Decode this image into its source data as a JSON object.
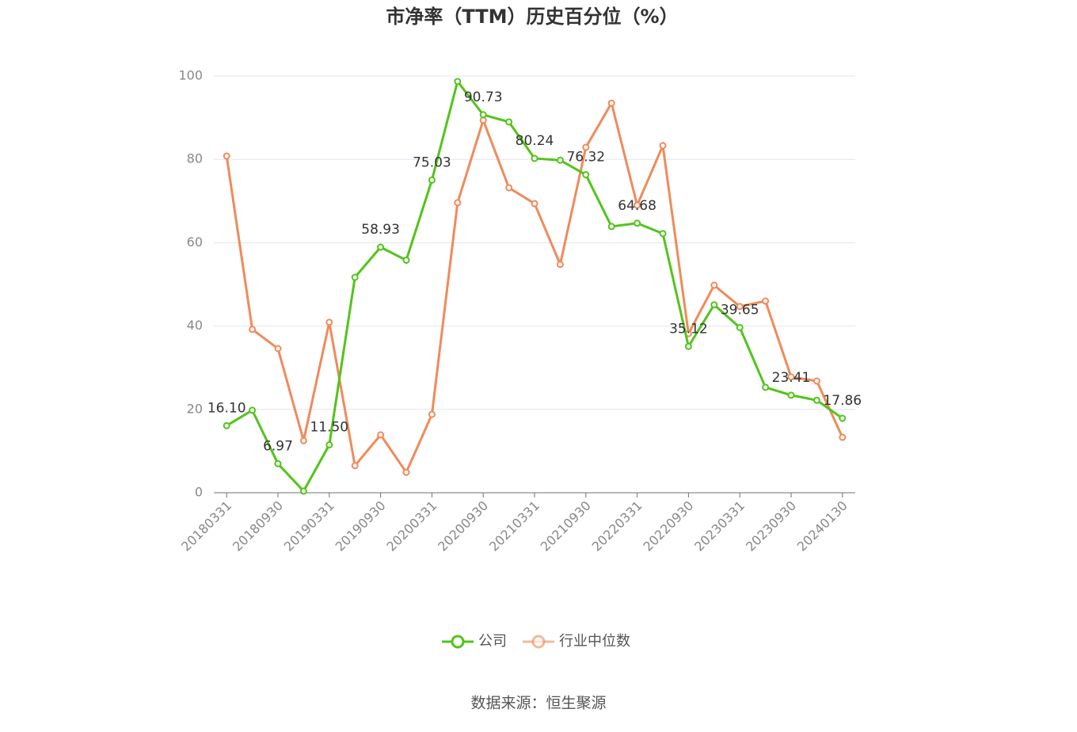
{
  "chart_data": {
    "type": "line",
    "title": "市净率（TTM）历史百分位（%）",
    "source": "数据来源：恒生聚源",
    "categories": [
      "20180331",
      null,
      "20180930",
      null,
      "20190331",
      null,
      "20190930",
      null,
      "20200331",
      null,
      "20200930",
      null,
      "20210331",
      null,
      "20210930",
      null,
      "20220331",
      null,
      "20220930",
      null,
      "20230331",
      null,
      "20230930",
      null,
      "20240130"
    ],
    "series": [
      {
        "name": "公司",
        "color": "#52c41a",
        "values": [
          16.1,
          19.8,
          6.97,
          0.4,
          11.5,
          51.7,
          58.93,
          55.8,
          75.03,
          98.7,
          90.73,
          89.0,
          80.24,
          79.8,
          76.32,
          63.9,
          64.68,
          62.2,
          35.12,
          45.1,
          39.65,
          25.3,
          23.41,
          22.2,
          17.86
        ],
        "value_labels": [
          "16.10",
          null,
          "6.97",
          null,
          "11.50",
          null,
          "58.93",
          null,
          "75.03",
          null,
          "90.73",
          null,
          "80.24",
          null,
          "76.32",
          null,
          "64.68",
          null,
          "35.12",
          null,
          "39.65",
          null,
          "23.41",
          null,
          "17.86"
        ]
      },
      {
        "name": "行业中位数",
        "color": "#f08a5b",
        "values": [
          80.8,
          39.2,
          34.6,
          12.5,
          40.9,
          6.5,
          13.9,
          4.9,
          18.8,
          69.6,
          89.4,
          73.2,
          69.4,
          54.8,
          82.9,
          93.5,
          69.0,
          83.3,
          38.2,
          49.8,
          44.7,
          46.0,
          27.8,
          26.8,
          13.3
        ]
      }
    ],
    "ylim": [
      0,
      100
    ],
    "yticks": [
      0,
      20,
      40,
      60,
      80,
      100
    ],
    "grid": true
  }
}
